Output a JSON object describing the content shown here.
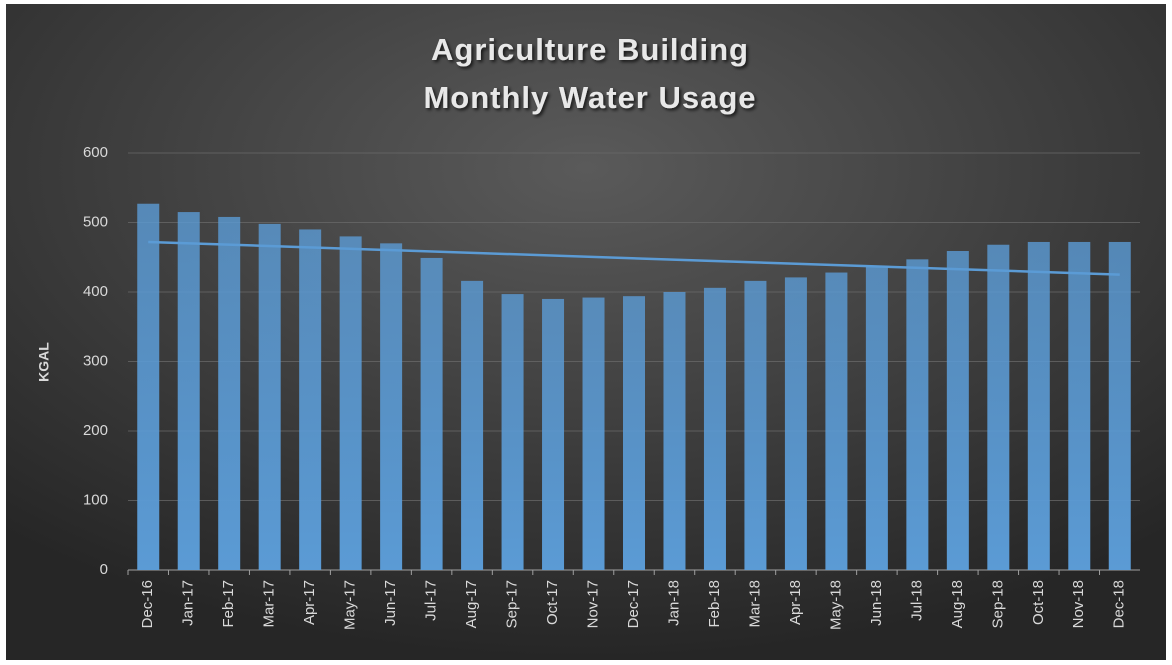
{
  "chart_data": {
    "type": "bar",
    "title": [
      "Agriculture Building",
      "Monthly Water Usage"
    ],
    "y_label": "KGAL",
    "categories": [
      "Dec-16",
      "Jan-17",
      "Feb-17",
      "Mar-17",
      "Apr-17",
      "May-17",
      "Jun-17",
      "Jul-17",
      "Aug-17",
      "Sep-17",
      "Oct-17",
      "Nov-17",
      "Dec-17",
      "Jan-18",
      "Feb-18",
      "Mar-18",
      "Apr-18",
      "May-18",
      "Jun-18",
      "Jul-18",
      "Aug-18",
      "Sep-18",
      "Oct-18",
      "Nov-18",
      "Dec-18"
    ],
    "values": [
      527,
      515,
      508,
      498,
      490,
      480,
      470,
      449,
      416,
      397,
      390,
      392,
      394,
      400,
      406,
      416,
      421,
      428,
      437,
      447,
      459,
      468,
      472,
      472,
      472
    ],
    "color": "#5b9bd5",
    "trendline": {
      "values": [
        472,
        425
      ],
      "color": "#5b9bd5"
    },
    "ylim": [
      0,
      600
    ],
    "yticks": [
      0,
      100,
      200,
      300,
      400,
      500,
      600
    ],
    "grid": true
  }
}
